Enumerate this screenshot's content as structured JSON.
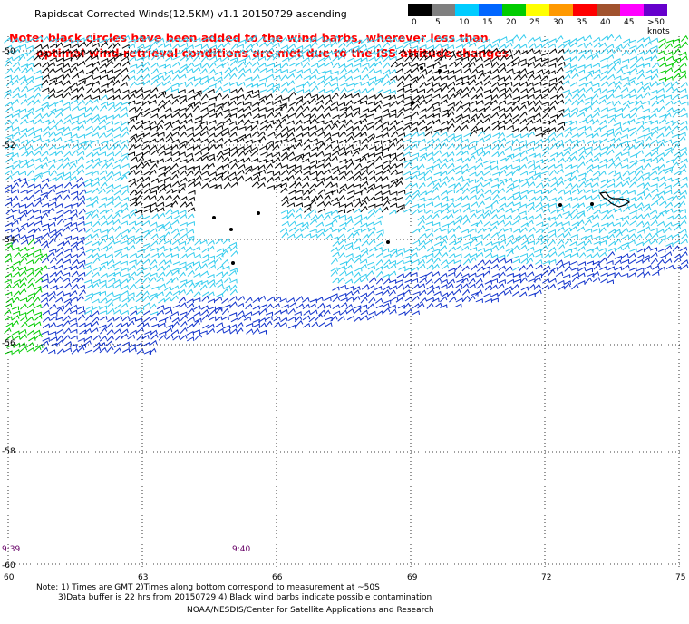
{
  "title": "Rapidscat Corrected Winds(12.5KM) v1.1 20150729 ascending",
  "note_line1": "Note: black circles have been added to the wind barbs, wherever less than",
  "note_line2": "optimal wind retrieval conditions are met due to the ISS attitude changes",
  "legend": {
    "labels": [
      "0",
      "5",
      "10",
      "15",
      "20",
      "25",
      "30",
      "35",
      "40",
      "45",
      ">50 knots"
    ],
    "colors": [
      "#000000",
      "#7f7f7f",
      "#00ccff",
      "#0066ff",
      "#00cc00",
      "#ffff00",
      "#ff9900",
      "#ff0000",
      "#a0522d",
      "#ff00ff",
      "#6600cc"
    ]
  },
  "lat_labels": [
    "-50",
    "-52",
    "-54",
    "-56",
    "-58",
    "-60"
  ],
  "lon_labels": [
    "60",
    "63",
    "66",
    "69",
    "72",
    "75"
  ],
  "times": [
    "9:39",
    "9:40"
  ],
  "footer": {
    "line1": "Note: 1) Times are GMT 2)Times along bottom correspond to measurement at ~50S",
    "line2": "3)Data buffer is 22 hrs from 20150729 4) Black wind barbs indicate possible contamination",
    "credit": "NOAA/NESDIS/Center for Satellite Applications and Research"
  },
  "colors": {
    "cyan_barb": "#33ccee",
    "blue_barb": "#1133cc",
    "green_barb": "#00cc00",
    "black_barb": "#000000",
    "note_red": "#ff0000"
  }
}
